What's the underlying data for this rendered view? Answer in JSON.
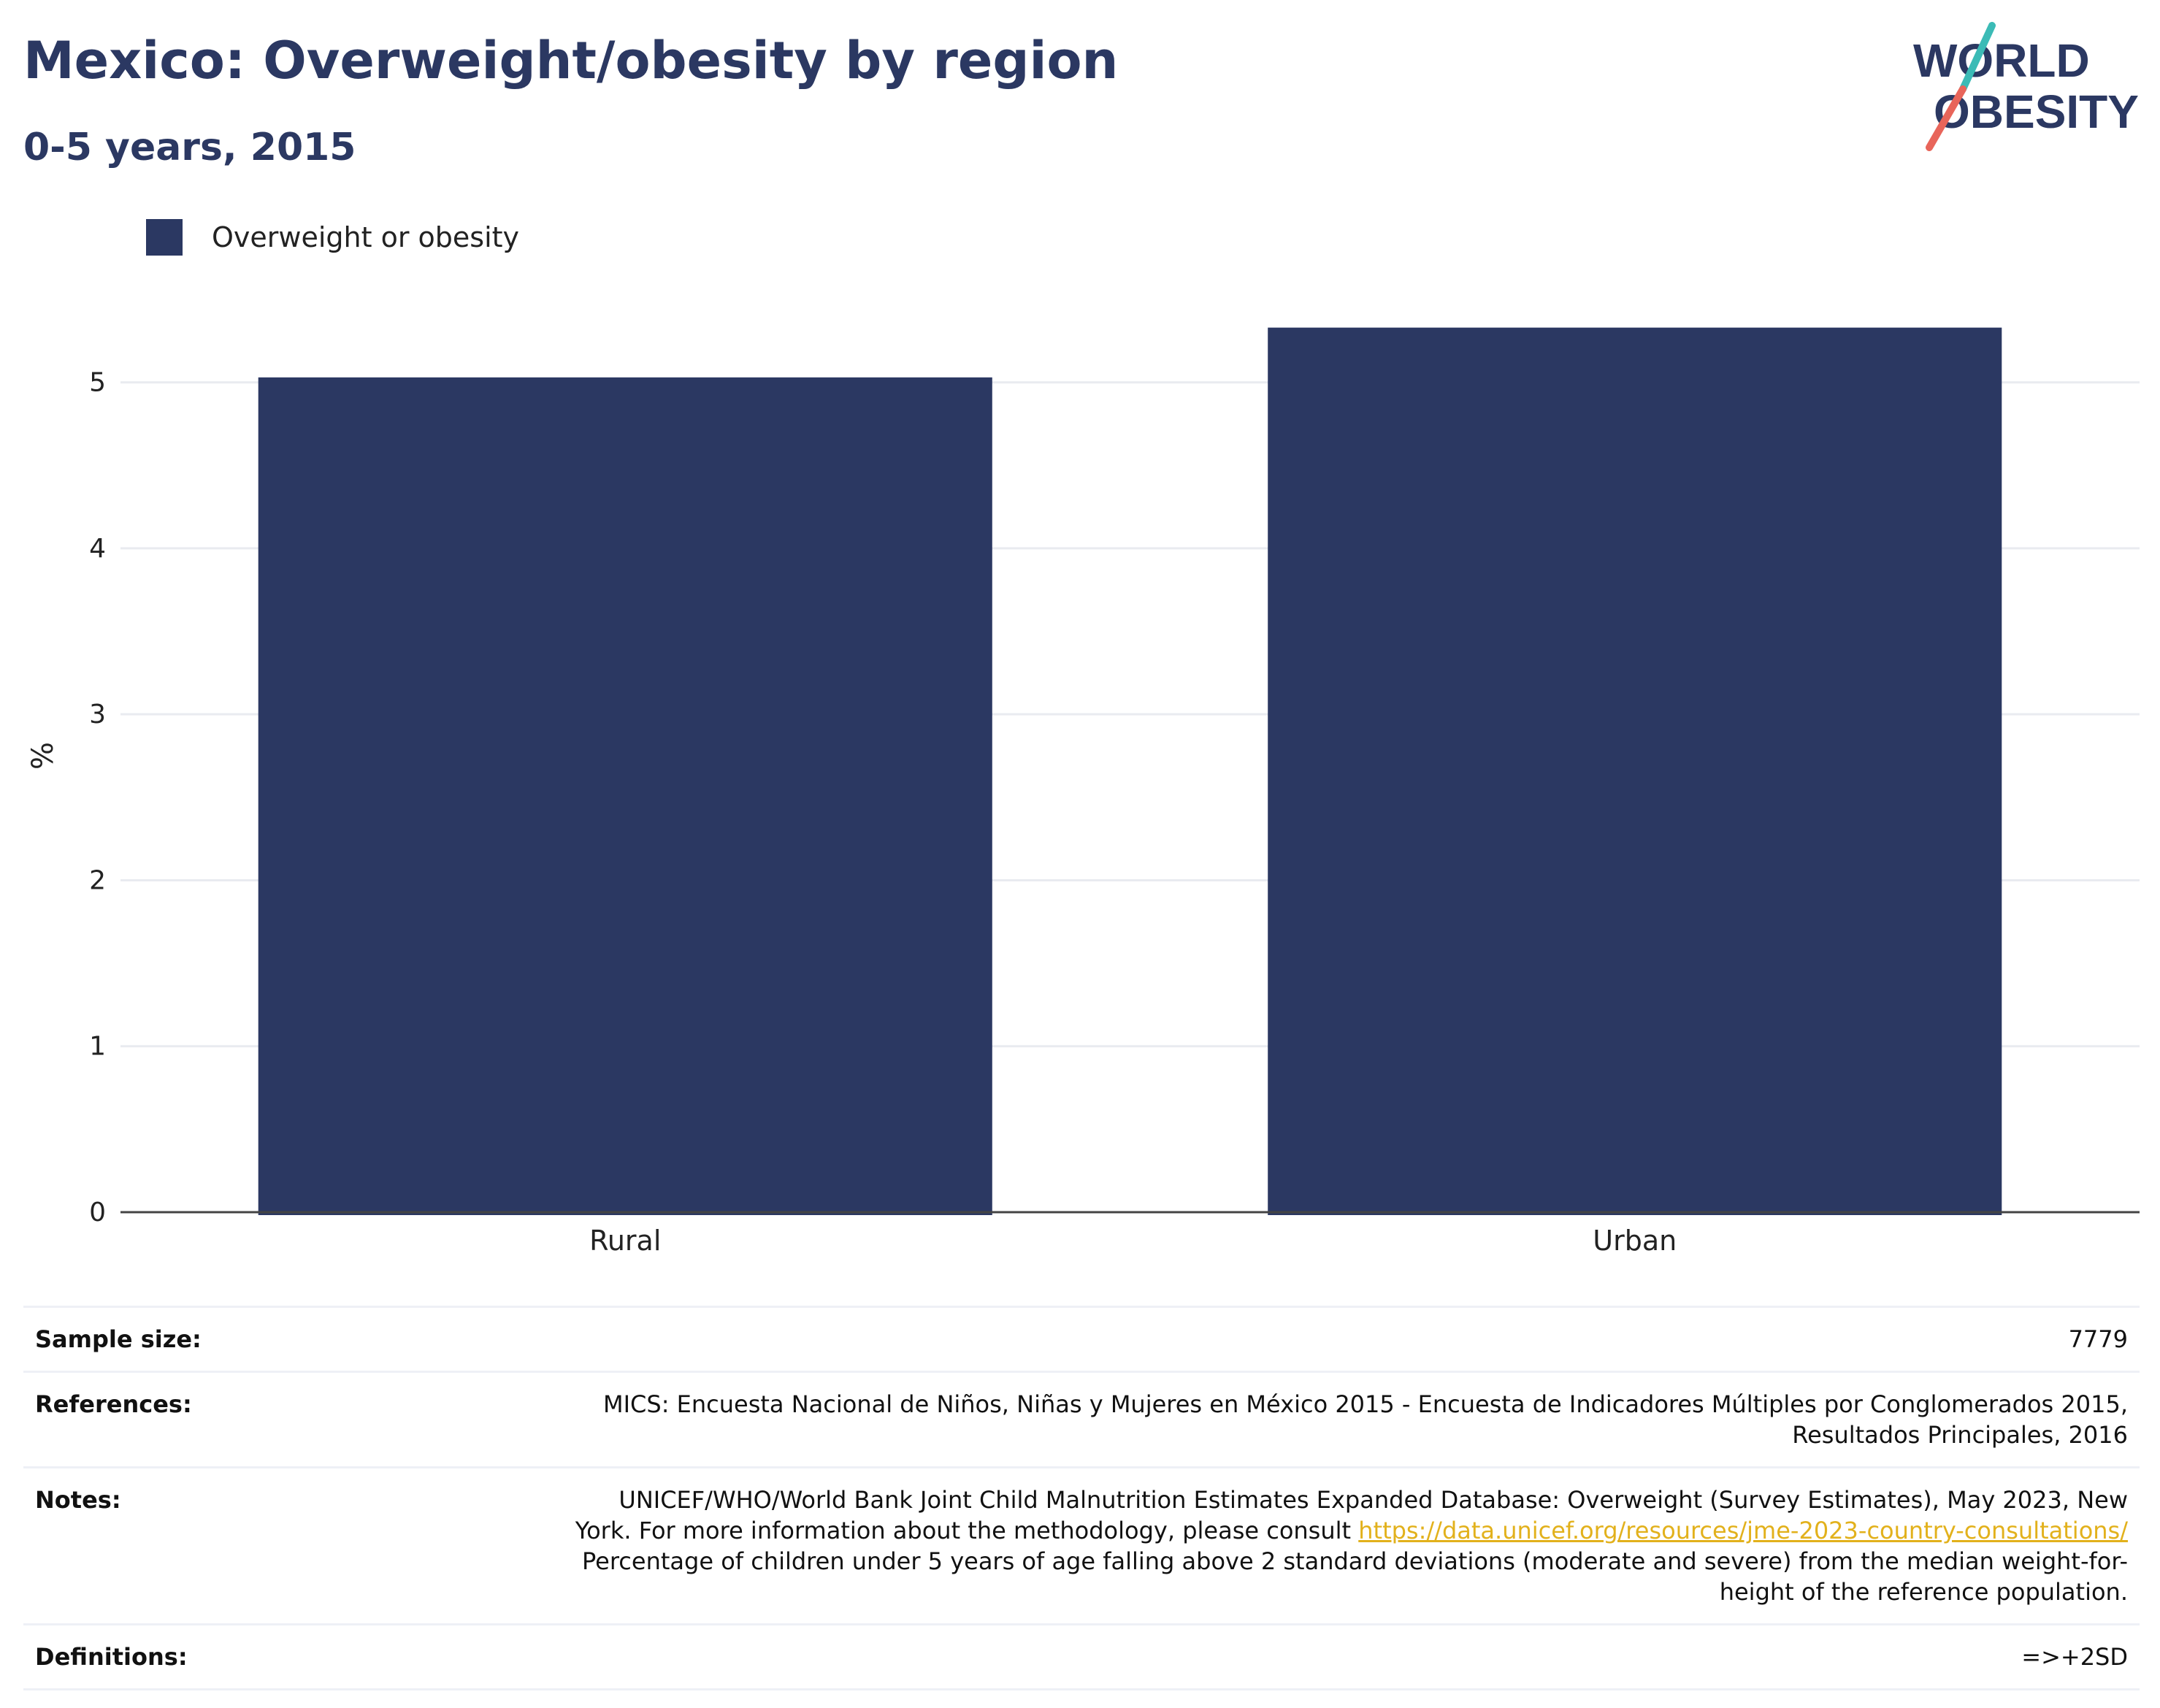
{
  "header": {
    "title": "Mexico: Overweight/obesity by region",
    "subtitle": "0-5 years, 2015"
  },
  "logo": {
    "line1": "WORLD",
    "line2": "OBESITY",
    "colors": {
      "text": "#2b3862",
      "slash_top": "#3bbbb6",
      "slash_bottom": "#e8655a"
    }
  },
  "legend": {
    "label": "Overweight or obesity",
    "color": "#2b3862"
  },
  "chart_data": {
    "type": "bar",
    "categories": [
      "Rural",
      "Urban"
    ],
    "series": [
      {
        "name": "Overweight or obesity",
        "values": [
          5.03,
          5.33
        ],
        "color": "#2b3862"
      }
    ],
    "ylabel": "%",
    "ylim": [
      0,
      5.5
    ],
    "yticks": [
      0,
      1,
      2,
      3,
      4,
      5
    ],
    "grid": true,
    "legend_position": "top-left"
  },
  "info": {
    "sample_size": {
      "label": "Sample size:",
      "value": "7779"
    },
    "references": {
      "label": "References:",
      "line1": "MICS: Encuesta Nacional de Niños, Niñas y Mujeres en México 2015 - Encuesta de Indicadores Múltiples por Conglomerados 2015,",
      "line2": "Resultados Principales, 2016"
    },
    "notes": {
      "label": "Notes:",
      "line1": "UNICEF/WHO/World Bank Joint Child Malnutrition Estimates Expanded Database: Overweight (Survey Estimates), May 2023, New",
      "line2_text": "York. For more information about the methodology, please consult ",
      "line2_link": "https://data.unicef.org/resources/jme-2023-country-consultations/",
      "line3": "Percentage of children under 5 years of age falling above 2 standard deviations (moderate and severe) from the median weight-for-",
      "line4": "height of the reference population."
    },
    "definitions": {
      "label": "Definitions:",
      "value": "=>+2SD"
    }
  }
}
